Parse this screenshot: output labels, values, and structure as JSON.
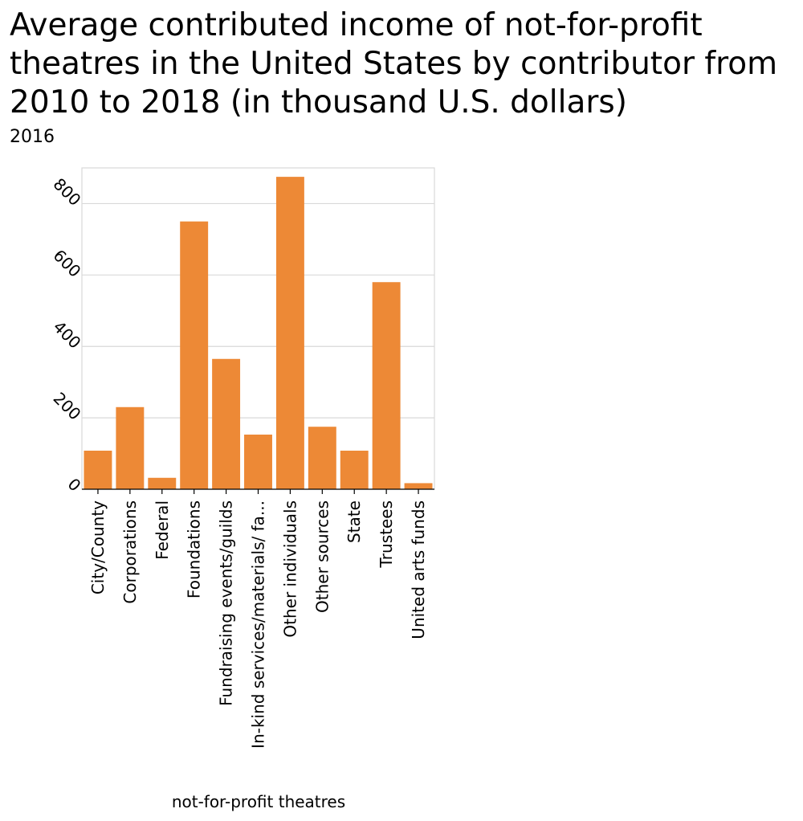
{
  "chart_data": {
    "type": "bar",
    "title": "Average contributed income of not-for-profit theatres in the United States by contributor from 2010 to 2018 (in thousand U.S. dollars)",
    "subtitle": "2016",
    "xlabel": "not-for-profit theatres",
    "ylabel": "",
    "ylim": [
      0,
      900
    ],
    "yticks": [
      0,
      200,
      400,
      600,
      800
    ],
    "grid": true,
    "bar_color": "#ed8936",
    "categories": [
      "City/County",
      "Corporations",
      "Federal",
      "Foundations",
      "Fundraising events/guilds",
      "In-kind services/materials/ fa...",
      "Other individuals",
      "Other sources",
      "State",
      "Trustees",
      "United arts funds"
    ],
    "values": [
      108,
      230,
      32,
      750,
      365,
      153,
      875,
      175,
      108,
      580,
      17
    ]
  }
}
